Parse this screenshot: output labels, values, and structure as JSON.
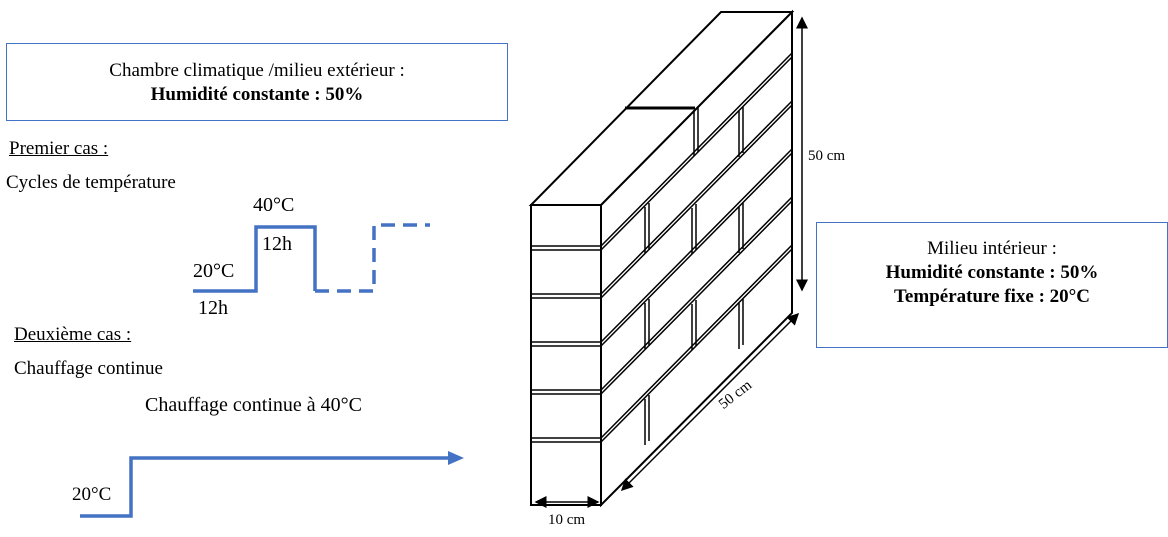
{
  "outer_box": {
    "line1": "Chambre climatique /milieu extérieur :",
    "line2": "Humidité constante : 50%"
  },
  "case1": {
    "heading": "Premier cas :",
    "subtitle": "Cycles de température",
    "high_temp": "40°C",
    "high_duration": "12h",
    "low_temp": "20°C",
    "low_duration": "12h"
  },
  "case2": {
    "heading": "Deuxième cas :",
    "subtitle": "Chauffage continue",
    "label": "Chauffage continue à 40°C",
    "start_temp": "20°C"
  },
  "inner_box": {
    "line1": "Milieu intérieur :",
    "line2": "Humidité constante : 50%",
    "line3": "Température fixe : 20°C"
  },
  "wall": {
    "height": "50 cm",
    "length": "50 cm",
    "thickness": "10 cm"
  },
  "colors": {
    "accent": "#4472c4",
    "ink": "#000000"
  }
}
